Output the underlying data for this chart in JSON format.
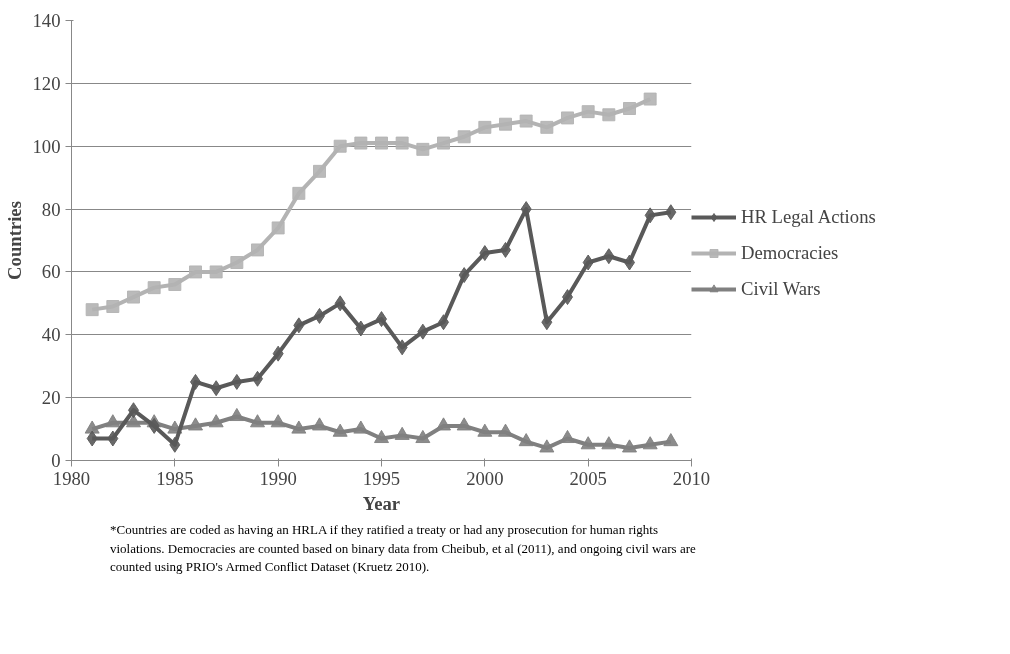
{
  "chart_data": {
    "type": "line",
    "xlabel": "Year",
    "ylabel": "Countries",
    "x": [
      1981,
      1982,
      1983,
      1984,
      1985,
      1986,
      1987,
      1988,
      1989,
      1990,
      1991,
      1992,
      1993,
      1994,
      1995,
      1996,
      1997,
      1998,
      1999,
      2000,
      2001,
      2002,
      2003,
      2004,
      2005,
      2006,
      2007,
      2008,
      2009
    ],
    "series": [
      {
        "name": "HR Legal Actions",
        "color": "#595959",
        "marker": "diamond",
        "values": [
          7,
          7,
          16,
          11,
          5,
          25,
          23,
          25,
          26,
          34,
          43,
          46,
          50,
          42,
          45,
          36,
          41,
          44,
          59,
          66,
          67,
          80,
          44,
          52,
          63,
          65,
          63,
          78,
          79
        ]
      },
      {
        "name": "Democracies",
        "color": "#b3b3b3",
        "marker": "square",
        "values": [
          48,
          49,
          52,
          55,
          56,
          60,
          60,
          63,
          67,
          74,
          85,
          92,
          100,
          101,
          101,
          101,
          99,
          101,
          103,
          106,
          107,
          108,
          106,
          109,
          111,
          110,
          112,
          115,
          null
        ]
      },
      {
        "name": "Civil Wars",
        "color": "#808080",
        "marker": "triangle",
        "values": [
          10,
          12,
          12,
          12,
          10,
          11,
          12,
          14,
          12,
          12,
          10,
          11,
          9,
          10,
          7,
          8,
          7,
          11,
          11,
          9,
          9,
          6,
          4,
          7,
          5,
          5,
          4,
          5,
          6
        ]
      }
    ],
    "xlim": [
      1980,
      2010
    ],
    "xticks": [
      1980,
      1985,
      1990,
      1995,
      2000,
      2005,
      2010
    ],
    "ylim": [
      0,
      140
    ],
    "yticks": [
      0,
      20,
      40,
      60,
      80,
      100,
      120,
      140
    ],
    "grid": "y",
    "legend": "right",
    "line_style": "solid",
    "annotations": [
      "*Countries are coded as having an HRLA if they ratified a treaty or had any prosecution for human rights violations. Democracies are counted based on binary data from Cheibub, et al (2011), and ongoing civil wars are counted using  PRIO's Armed Conflict Dataset (Kruetz 2010)."
    ]
  }
}
